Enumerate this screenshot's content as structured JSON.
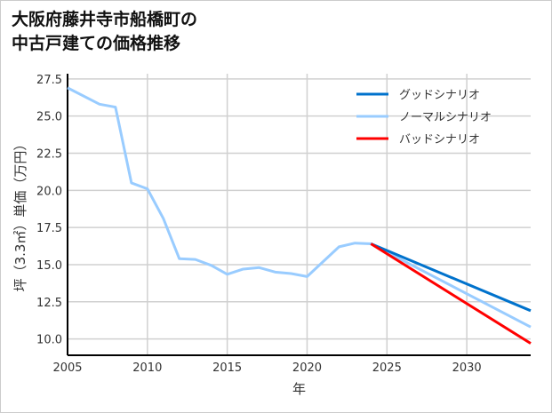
{
  "chart_data": {
    "type": "line",
    "title_lines": [
      "大阪府藤井寺市船橋町の",
      "中古戸建ての価格推移"
    ],
    "xlabel": "年",
    "ylabel": "坪（3.3㎡）単価（万円）",
    "xlim": [
      2005,
      2034
    ],
    "ylim": [
      8.9,
      27.85
    ],
    "xticks": [
      2005,
      2010,
      2015,
      2020,
      2025,
      2030
    ],
    "yticks": [
      10.0,
      12.5,
      15.0,
      17.5,
      20.0,
      22.5,
      25.0,
      27.5
    ],
    "grid": true,
    "legend_position": "top-right",
    "series": [
      {
        "name": "グッドシナリオ",
        "color": "#0072cc",
        "x": [
          2024,
          2034
        ],
        "y": [
          16.4,
          11.9
        ]
      },
      {
        "name": "ノーマルシナリオ",
        "color": "#99ccff",
        "x": [
          2005,
          2007,
          2008,
          2009,
          2010,
          2011,
          2012,
          2013,
          2014,
          2015,
          2016,
          2017,
          2018,
          2019,
          2020,
          2021,
          2022,
          2023,
          2024,
          2034
        ],
        "y": [
          26.9,
          25.8,
          25.6,
          20.5,
          20.1,
          18.1,
          15.4,
          15.35,
          14.95,
          14.35,
          14.7,
          14.8,
          14.5,
          14.4,
          14.2,
          15.2,
          16.2,
          16.45,
          16.4,
          10.8
        ]
      },
      {
        "name": "バッドシナリオ",
        "color": "#ff0000",
        "x": [
          2024,
          2034
        ],
        "y": [
          16.4,
          9.7
        ]
      }
    ]
  }
}
